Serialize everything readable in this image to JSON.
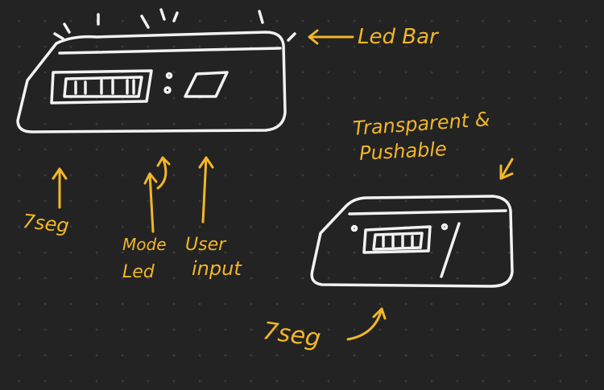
{
  "labels": {
    "led_bar": "Led Bar",
    "transparent_line1": "Transparent &",
    "transparent_line2": "Pushable",
    "seg_left": "7seg",
    "mode_line1": "Mode",
    "mode_line2": "Led",
    "user_line1": "User",
    "user_line2": "input",
    "seg_right": "7seg"
  },
  "colors": {
    "background": "#232323",
    "sketch": "#f2f2f2",
    "annotation": "#f2b62a"
  }
}
